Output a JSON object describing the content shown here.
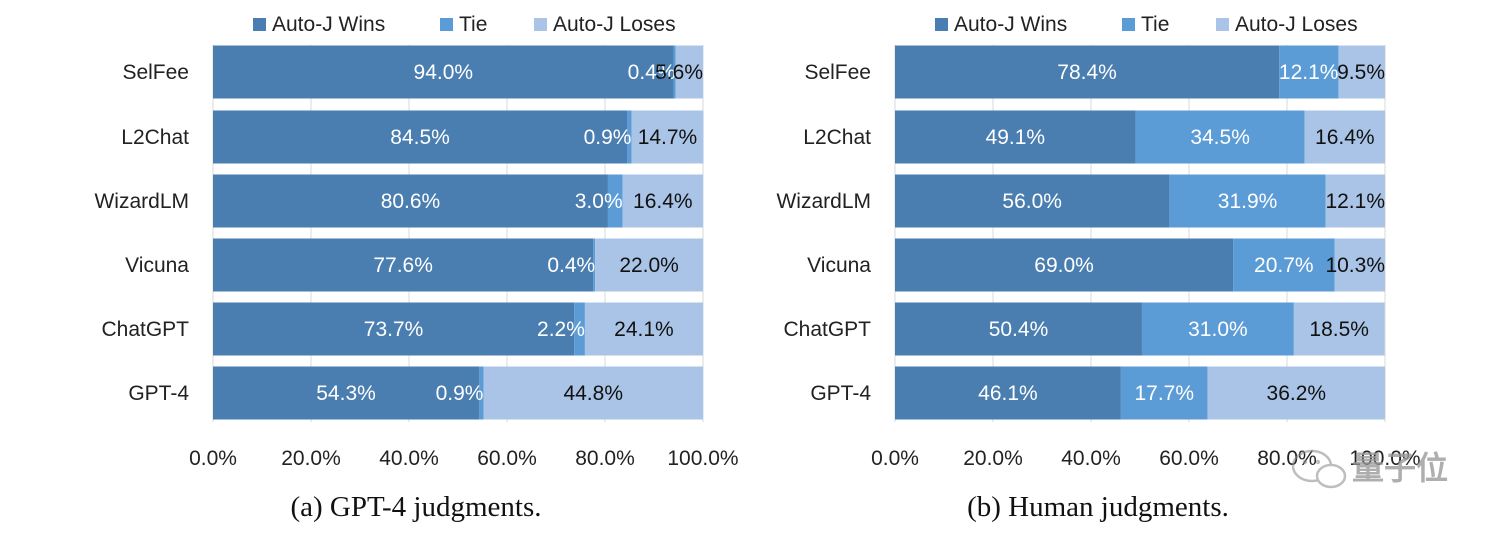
{
  "colors": {
    "wins": "#4a7eb0",
    "tie": "#5b9bd6",
    "loses": "#a9c4e6",
    "grid": "#d9d9d9"
  },
  "legend": [
    "Auto-J Wins",
    "Tie",
    "Auto-J Loses"
  ],
  "watermark": "量子位",
  "chart_data": [
    {
      "type": "bar",
      "orientation": "horizontal",
      "stacked": true,
      "caption": "(a) GPT-4 judgments.",
      "categories": [
        "SelFee",
        "L2Chat",
        "WizardLM",
        "Vicuna",
        "ChatGPT",
        "GPT-4"
      ],
      "series": [
        {
          "name": "Auto-J Wins",
          "values": [
            94.0,
            84.5,
            80.6,
            77.6,
            73.7,
            54.3
          ]
        },
        {
          "name": "Tie",
          "values": [
            0.4,
            0.9,
            3.0,
            0.4,
            2.2,
            0.9
          ]
        },
        {
          "name": "Auto-J Loses",
          "values": [
            5.6,
            14.7,
            16.4,
            22.0,
            24.1,
            44.8
          ]
        }
      ],
      "xlim": [
        0,
        100
      ],
      "xticks": [
        "0.0%",
        "20.0%",
        "40.0%",
        "60.0%",
        "80.0%",
        "100.0%"
      ],
      "legend_position": "top",
      "grid": "vertical"
    },
    {
      "type": "bar",
      "orientation": "horizontal",
      "stacked": true,
      "caption": "(b) Human judgments.",
      "categories": [
        "SelFee",
        "L2Chat",
        "WizardLM",
        "Vicuna",
        "ChatGPT",
        "GPT-4"
      ],
      "series": [
        {
          "name": "Auto-J Wins",
          "values": [
            78.4,
            49.1,
            56.0,
            69.0,
            50.4,
            46.1
          ]
        },
        {
          "name": "Tie",
          "values": [
            12.1,
            34.5,
            31.9,
            20.7,
            31.0,
            17.7
          ]
        },
        {
          "name": "Auto-J Loses",
          "values": [
            9.5,
            16.4,
            12.1,
            10.3,
            18.5,
            36.2
          ]
        }
      ],
      "xlim": [
        0,
        100
      ],
      "xticks": [
        "0.0%",
        "20.0%",
        "40.0%",
        "60.0%",
        "80.0%",
        "100.0%"
      ],
      "legend_position": "top",
      "grid": "vertical"
    }
  ]
}
